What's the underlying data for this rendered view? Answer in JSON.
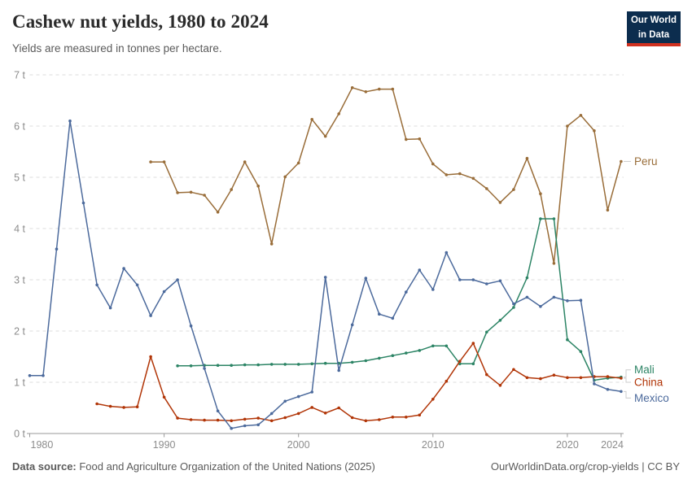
{
  "header": {
    "title": "Cashew nut yields, 1980 to 2024",
    "subtitle": "Yields are measured in tonnes per hectare.",
    "logo": {
      "line1": "Our World",
      "line2": "in Data"
    }
  },
  "footer": {
    "source_label": "Data source:",
    "source_text": " Food and Agriculture Organization of the United Nations (2025)",
    "link_text": "OurWorldinData.org/crop-yields | CC BY"
  },
  "chart_data": {
    "type": "line",
    "title": "Cashew nut yields, 1980 to 2024",
    "unit": "tonnes per hectare",
    "xlabel": "",
    "ylabel": "",
    "x_range": [
      1980,
      2024
    ],
    "ylim": [
      0,
      7
    ],
    "grid": "horizontal-dashed",
    "legend_position": "right-end-labels",
    "x_ticks": [
      1980,
      1990,
      2000,
      2010,
      2020,
      2024
    ],
    "y_ticks": [
      "0 t",
      "1 t",
      "2 t",
      "3 t",
      "4 t",
      "5 t",
      "6 t",
      "7 t"
    ],
    "axis_color": "#9a9a9a",
    "gridline_color": "#dddddd",
    "tick_label_color": "#8c8c8c",
    "series": [
      {
        "name": "Peru",
        "color": "#996d39",
        "start_year": 1989,
        "label_dy": 0,
        "values": [
          5.3,
          5.3,
          4.7,
          4.71,
          4.65,
          4.32,
          4.76,
          5.3,
          4.83,
          3.7,
          5.01,
          5.28,
          6.13,
          5.8,
          6.24,
          6.75,
          6.67,
          6.72,
          6.72,
          5.74,
          5.75,
          5.26,
          5.05,
          5.07,
          4.98,
          4.78,
          4.51,
          4.76,
          5.37,
          4.68,
          3.32,
          6.0,
          6.21,
          5.91,
          4.36,
          5.31
        ]
      },
      {
        "name": "Mali",
        "color": "#2c8465",
        "start_year": 1991,
        "label_dy": -9,
        "values": [
          1.32,
          1.32,
          1.33,
          1.33,
          1.33,
          1.34,
          1.34,
          1.35,
          1.35,
          1.35,
          1.36,
          1.37,
          1.37,
          1.39,
          1.42,
          1.47,
          1.52,
          1.57,
          1.62,
          1.71,
          1.71,
          1.36,
          1.36,
          1.98,
          2.21,
          2.46,
          3.04,
          4.19,
          4.19,
          1.83,
          1.6,
          1.04,
          1.08,
          1.1
        ]
      },
      {
        "name": "China",
        "color": "#b13507",
        "start_year": 1985,
        "label_dy": 5,
        "values": [
          0.58,
          0.53,
          0.51,
          0.52,
          1.5,
          0.71,
          0.3,
          0.27,
          0.26,
          0.26,
          0.25,
          0.28,
          0.3,
          0.25,
          0.31,
          0.39,
          0.51,
          0.4,
          0.5,
          0.31,
          0.25,
          0.27,
          0.32,
          0.32,
          0.36,
          0.67,
          1.02,
          1.41,
          1.76,
          1.15,
          0.94,
          1.25,
          1.09,
          1.07,
          1.14,
          1.09,
          1.09,
          1.11,
          1.11,
          1.08
        ]
      },
      {
        "name": "Mexico",
        "color": "#4c6a9c",
        "start_year": 1980,
        "label_dy": 8,
        "values": [
          1.13,
          1.13,
          3.6,
          6.1,
          4.5,
          2.9,
          2.45,
          3.22,
          2.9,
          2.3,
          2.77,
          3.0,
          2.1,
          1.27,
          0.44,
          0.1,
          0.15,
          0.17,
          0.39,
          0.63,
          0.72,
          0.81,
          3.05,
          1.23,
          2.12,
          3.03,
          2.33,
          2.25,
          2.76,
          3.19,
          2.81,
          3.53,
          3.0,
          3.0,
          2.92,
          2.98,
          2.53,
          2.66,
          2.48,
          2.66,
          2.59,
          2.6,
          0.97,
          0.86,
          0.82
        ]
      }
    ]
  }
}
